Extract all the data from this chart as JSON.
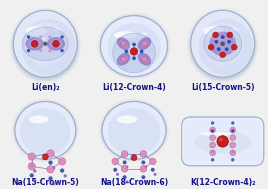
{
  "background_color": "#f0f0f0",
  "labels": [
    "Li(en)₂",
    "Li(12-Crown-4)",
    "Li(15-Crown-5)",
    "Na(15-Crown-5)",
    "Na(18-Crown-6)",
    "K(12-Crown-4)₂"
  ],
  "label_fontsize": 5.5,
  "label_color": "#111188",
  "bubble_base": "#c8d4ee",
  "bubble_mid": "#d8e4f8",
  "bubble_light": "#e8eeff",
  "bubble_edge": "#9aabcc",
  "bubble_shadow": "#8899bb",
  "highlight_color": "#ffffff",
  "inner_bubble_color": "#b8c8e8",
  "inner_bubble_edge": "#8898c8",
  "mol_red": "#cc1111",
  "mol_darkblue": "#1133aa",
  "mol_purple": "#7733aa",
  "mol_pink": "#dd88bb",
  "mol_lightblue": "#aabbdd",
  "mol_maroon": "#882244",
  "figure_width": 2.68,
  "figure_height": 1.89,
  "dpi": 100
}
